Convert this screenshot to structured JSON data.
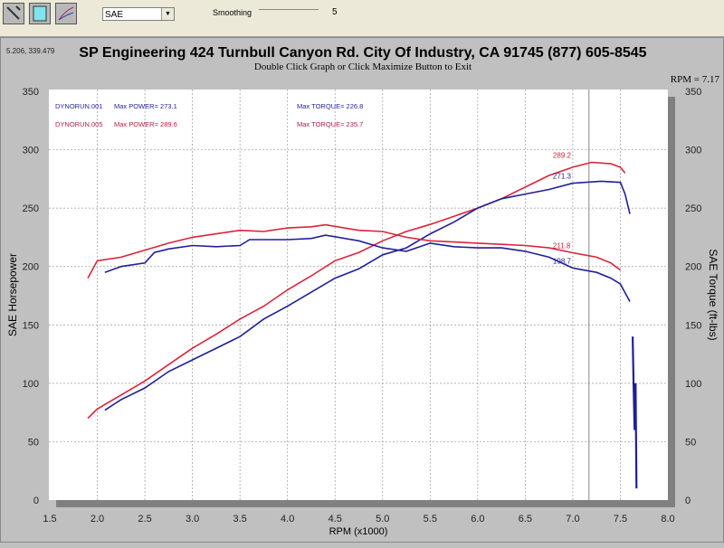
{
  "toolbar": {
    "icons": [
      "wrench-icon",
      "clipboard-icon",
      "graph-overlay-icon"
    ],
    "unit_select": "SAE",
    "smoothing_label": "Smoothing",
    "smoothing_value": "5"
  },
  "cursor_readout": "5.206, 339.479",
  "title": "SP Engineering 424 Turnbull Canyon Rd. City Of Industry, CA 91745 (877) 605-8545",
  "subtitle": "Double Click Graph or Click Maximize Button to Exit",
  "rpm_readout": "RPM = 7.17",
  "colors": {
    "run1": "#1f1f9a",
    "run2": "#d9243a"
  },
  "legend": [
    {
      "run": "DYNORUN.001",
      "power": "Max POWER= 273.1",
      "torque": "Max TORQUE= 226.8"
    },
    {
      "run": "DYNORUN.005",
      "power": "Max POWER= 289.6",
      "torque": "Max TORQUE= 235.7"
    }
  ],
  "chart_data": {
    "type": "line",
    "xlabel": "RPM (x1000)",
    "ylabel": "SAE Horsepower",
    "y2label": "SAE Torque (ft-lbs)",
    "xlim": [
      1.5,
      8.0
    ],
    "ylim": [
      0,
      350
    ],
    "xticks": [
      "1.5",
      "2.0",
      "2.5",
      "3.0",
      "3.5",
      "4.0",
      "4.5",
      "5.0",
      "5.5",
      "6.0",
      "6.5",
      "7.0",
      "7.5",
      "8.0"
    ],
    "yticks": [
      "0",
      "50",
      "100",
      "150",
      "200",
      "250",
      "300",
      "350"
    ],
    "grid": true,
    "cursor_rpm": 7.17,
    "series": [
      {
        "name": "DYNORUN.005",
        "kind": "power",
        "color": "#d9243a",
        "x": [
          1.9,
          2.0,
          2.25,
          2.5,
          2.75,
          3.0,
          3.25,
          3.5,
          3.75,
          4.0,
          4.25,
          4.5,
          4.75,
          5.0,
          5.25,
          5.5,
          5.75,
          6.0,
          6.25,
          6.5,
          6.75,
          7.0,
          7.2,
          7.4,
          7.5,
          7.55
        ],
        "y": [
          70,
          78,
          90,
          102,
          116,
          130,
          142,
          155,
          166,
          180,
          192,
          205,
          212,
          222,
          230,
          236,
          243,
          250,
          258,
          268,
          278,
          285,
          289.2,
          288,
          285,
          280
        ]
      },
      {
        "name": "DYNORUN.001",
        "kind": "power",
        "color": "#1f1f9a",
        "x": [
          2.08,
          2.25,
          2.5,
          2.75,
          3.0,
          3.25,
          3.5,
          3.75,
          4.0,
          4.25,
          4.5,
          4.75,
          5.0,
          5.25,
          5.5,
          5.75,
          6.0,
          6.25,
          6.5,
          6.75,
          7.0,
          7.3,
          7.5,
          7.55,
          7.6
        ],
        "y": [
          77,
          86,
          96,
          110,
          120,
          130,
          140,
          155,
          166,
          178,
          190,
          198,
          210,
          216,
          228,
          238,
          250,
          258,
          262,
          266,
          271.3,
          273,
          272,
          262,
          245
        ]
      },
      {
        "name": "DYNORUN.005",
        "kind": "torque",
        "color": "#d9243a",
        "x": [
          1.9,
          2.0,
          2.25,
          2.5,
          2.75,
          3.0,
          3.25,
          3.5,
          3.75,
          4.0,
          4.25,
          4.4,
          4.75,
          5.0,
          5.25,
          5.5,
          5.75,
          6.0,
          6.25,
          6.5,
          6.75,
          7.0,
          7.25,
          7.4,
          7.5
        ],
        "y": [
          190,
          205,
          208,
          214,
          220,
          225,
          228,
          231,
          230,
          233,
          234,
          235.7,
          231,
          230,
          225,
          222,
          221,
          220,
          219,
          218,
          216,
          211.8,
          208,
          203,
          197
        ]
      },
      {
        "name": "DYNORUN.001",
        "kind": "torque",
        "color": "#1f1f9a",
        "x": [
          2.08,
          2.25,
          2.5,
          2.6,
          2.75,
          3.0,
          3.25,
          3.5,
          3.6,
          4.0,
          4.25,
          4.4,
          4.75,
          5.0,
          5.25,
          5.5,
          5.75,
          6.0,
          6.25,
          6.5,
          6.75,
          7.0,
          7.25,
          7.4,
          7.5,
          7.6
        ],
        "y": [
          195,
          200,
          203,
          212,
          215,
          218,
          217,
          218,
          223,
          223,
          224,
          226.8,
          222,
          216,
          213,
          220,
          217,
          216,
          216,
          213,
          208,
          198.7,
          195,
          190,
          185,
          170
        ]
      },
      {
        "name": "DYNORUN.001",
        "kind": "tail",
        "color": "#1f1f9a",
        "x": [
          7.63,
          7.64,
          7.65,
          7.66,
          7.67
        ],
        "y": [
          140,
          95,
          60,
          100,
          10
        ]
      }
    ],
    "annotations": [
      {
        "text": "289.2",
        "x": 7.0,
        "y": 289.2,
        "color": "#d9243a"
      },
      {
        "text": "271.3",
        "x": 7.0,
        "y": 271.3,
        "color": "#1f1f9a"
      },
      {
        "text": "211.8",
        "x": 7.0,
        "y": 211.8,
        "color": "#d9243a"
      },
      {
        "text": "198.7",
        "x": 7.0,
        "y": 198.7,
        "color": "#1f1f9a"
      }
    ]
  }
}
